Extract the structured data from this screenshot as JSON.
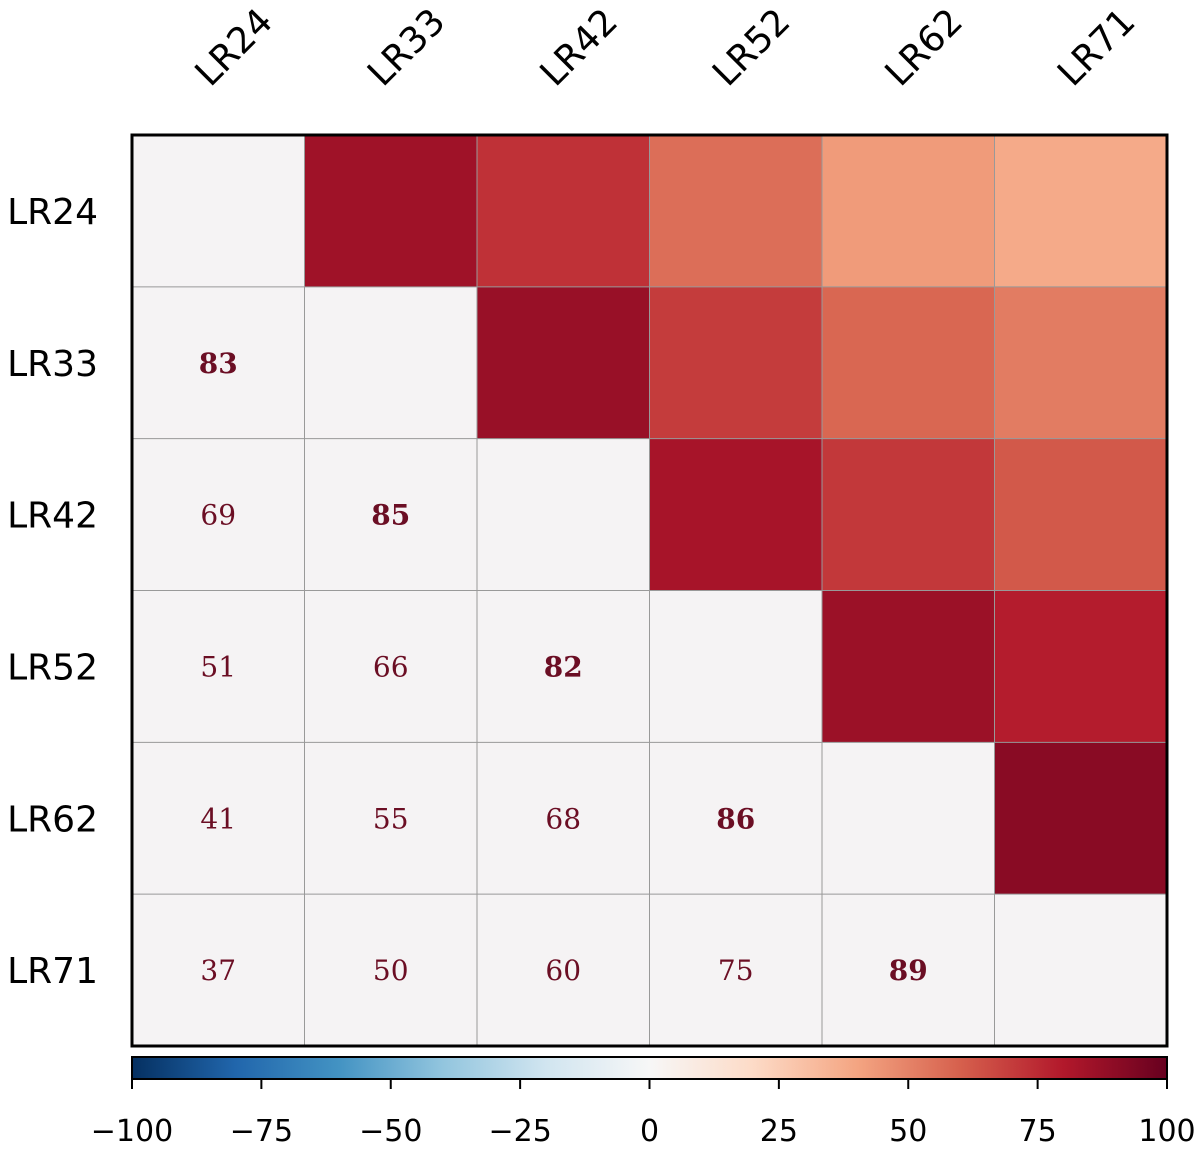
{
  "chart_data": {
    "type": "heatmap",
    "title": "",
    "xlabel": "",
    "ylabel": "",
    "x_labels": [
      "LR24",
      "LR33",
      "LR42",
      "LR52",
      "LR62",
      "LR71"
    ],
    "y_labels": [
      "LR24",
      "LR33",
      "LR42",
      "LR52",
      "LR62",
      "LR71"
    ],
    "lower_triangle_values": [
      [
        null,
        null,
        null,
        null,
        null,
        null
      ],
      [
        83,
        null,
        null,
        null,
        null,
        null
      ],
      [
        69,
        85,
        null,
        null,
        null,
        null
      ],
      [
        51,
        66,
        82,
        null,
        null,
        null
      ],
      [
        41,
        55,
        68,
        86,
        null,
        null
      ],
      [
        37,
        50,
        60,
        75,
        89,
        null
      ]
    ],
    "lower_triangle_labels": [
      [
        "",
        "",
        "",
        "",
        "",
        ""
      ],
      [
        "83",
        "",
        "",
        "",
        "",
        ""
      ],
      [
        "69",
        "85",
        "",
        "",
        "",
        ""
      ],
      [
        "51",
        "66",
        "82",
        "",
        "",
        ""
      ],
      [
        "41",
        "55",
        "68",
        "86",
        "",
        ""
      ],
      [
        "37",
        "50",
        "60",
        "75",
        "89",
        ""
      ]
    ],
    "bold_cells": [
      [
        1,
        0
      ],
      [
        2,
        1
      ],
      [
        3,
        2
      ],
      [
        4,
        3
      ],
      [
        5,
        4
      ]
    ],
    "upper_triangle_values": [
      [
        null,
        85,
        73,
        56,
        43,
        38
      ],
      [
        null,
        null,
        87,
        70,
        58,
        52
      ],
      [
        null,
        null,
        null,
        83,
        71,
        62
      ],
      [
        null,
        null,
        null,
        null,
        86,
        79
      ],
      [
        null,
        null,
        null,
        null,
        null,
        91
      ],
      [
        null,
        null,
        null,
        null,
        null,
        null
      ]
    ],
    "lower_cell_color": "#f5f3f4",
    "text_color": "#6b0e24",
    "grid_color": "#999999",
    "colorbar": {
      "range": [
        -100,
        100
      ],
      "ticks": [
        -100,
        -75,
        -50,
        -25,
        0,
        25,
        50,
        75,
        100
      ],
      "tick_labels": [
        "−100",
        "−75",
        "−50",
        "−25",
        "0",
        "25",
        "50",
        "75",
        "100"
      ],
      "colormap": "RdBu_r",
      "placement": "bottom"
    }
  }
}
